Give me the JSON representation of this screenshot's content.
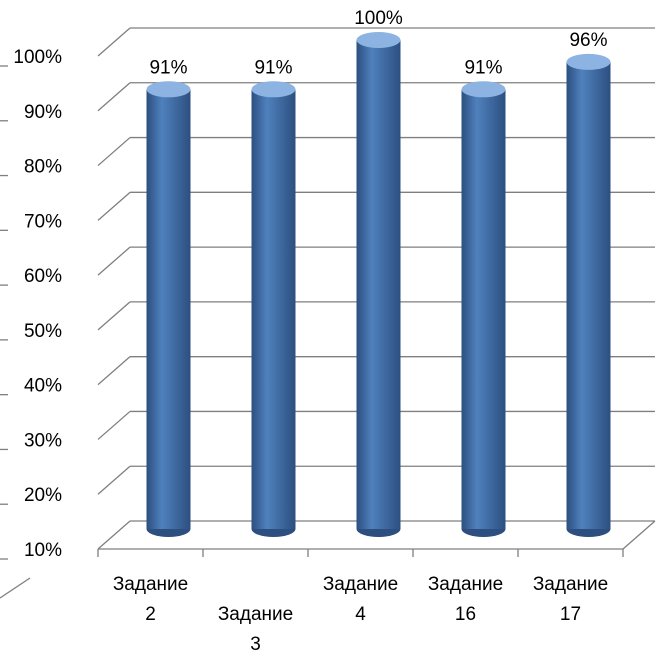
{
  "chart_data": {
    "type": "bar",
    "bar_style": "3d-cylinder",
    "categories": [
      [
        "Задание",
        "2"
      ],
      [
        "Задание",
        "3"
      ],
      [
        "Задание",
        "4"
      ],
      [
        "Задание",
        "16"
      ],
      [
        "Задание",
        "17"
      ]
    ],
    "values": [
      91,
      91,
      100,
      91,
      96
    ],
    "data_labels": [
      "91%",
      "91%",
      "100%",
      "91%",
      "96%"
    ],
    "label_rows": [
      0,
      1,
      0,
      0,
      0
    ],
    "y_ticks": [
      "10%",
      "20%",
      "30%",
      "40%",
      "50%",
      "60%",
      "70%",
      "80%",
      "90%",
      "100%"
    ],
    "ylim": [
      10,
      100
    ],
    "grid": true,
    "colors": {
      "bar": "#4f81bd",
      "bar_dark": "#2c4f80",
      "bar_light": "#8db3e2",
      "grid": "#7f7f7f"
    }
  }
}
